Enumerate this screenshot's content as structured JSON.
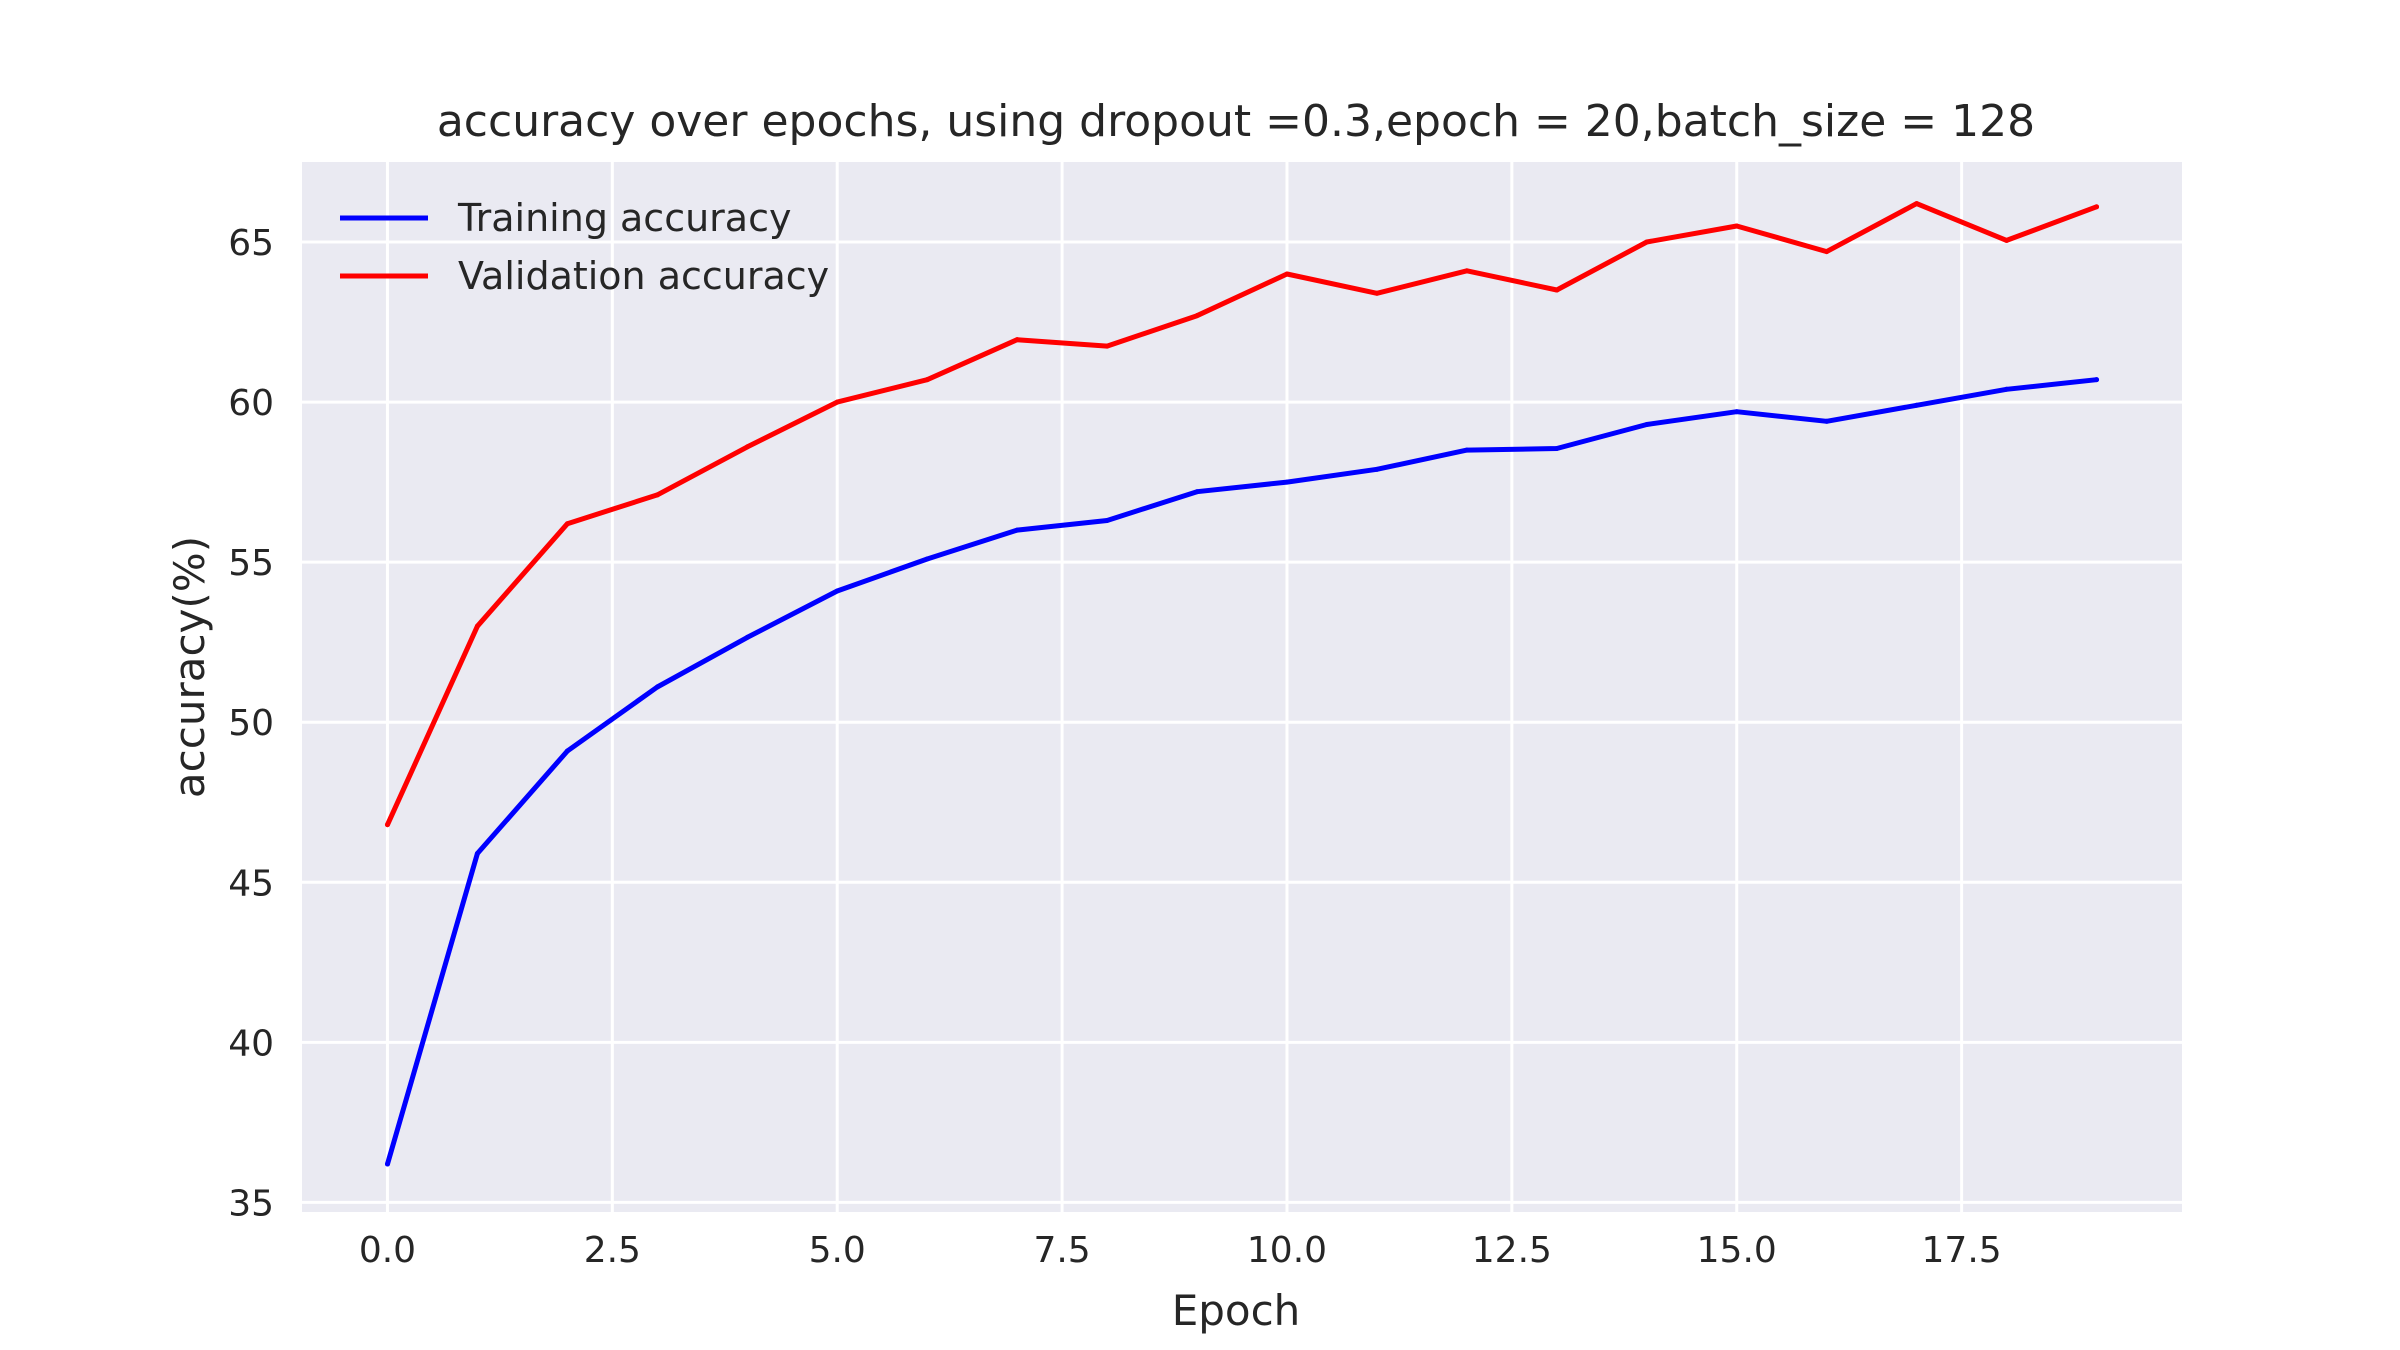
{
  "chart_data": {
    "type": "line",
    "title": "accuracy over epochs, using dropout =0.3,epoch = 20,batch_size = 128",
    "xlabel": "Epoch",
    "ylabel": "accuracy(%)",
    "x": [
      0,
      1,
      2,
      3,
      4,
      5,
      6,
      7,
      8,
      9,
      10,
      11,
      12,
      13,
      14,
      15,
      16,
      17,
      18,
      19
    ],
    "xlim": [
      -0.95,
      19.95
    ],
    "ylim": [
      34.7,
      67.5
    ],
    "xticks": [
      0.0,
      2.5,
      5.0,
      7.5,
      10.0,
      12.5,
      15.0,
      17.5
    ],
    "xtick_labels": [
      "0.0",
      "2.5",
      "5.0",
      "7.5",
      "10.0",
      "12.5",
      "15.0",
      "17.5"
    ],
    "yticks": [
      35,
      40,
      45,
      50,
      55,
      60,
      65
    ],
    "ytick_labels": [
      "35",
      "40",
      "45",
      "50",
      "55",
      "60",
      "65"
    ],
    "grid": true,
    "legend_position": "top-left",
    "series": [
      {
        "name": "Training accuracy",
        "color": "#0000ff",
        "values": [
          36.2,
          45.9,
          49.1,
          51.1,
          52.65,
          54.1,
          55.1,
          56.0,
          56.3,
          57.2,
          57.5,
          57.9,
          58.5,
          58.55,
          59.3,
          59.7,
          59.4,
          59.9,
          60.4,
          60.7
        ]
      },
      {
        "name": "Validation accuracy",
        "color": "#ff0000",
        "values": [
          46.8,
          53.0,
          56.2,
          57.1,
          58.6,
          60.0,
          60.7,
          61.95,
          61.75,
          62.7,
          64.0,
          63.4,
          64.1,
          63.5,
          65.0,
          65.5,
          64.7,
          66.2,
          65.05,
          66.1
        ]
      }
    ]
  },
  "colors": {
    "plot_background": "#eaeaf2",
    "grid": "#ffffff",
    "text": "#262626"
  }
}
